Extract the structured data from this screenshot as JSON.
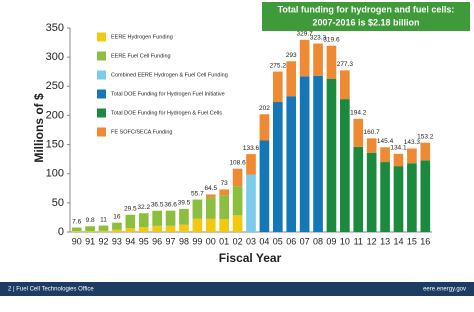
{
  "chart_data": {
    "type": "stacked-bar",
    "banner": [
      "Total funding for hydrogen and fuel cells:",
      "2007-2016 is $2.18 billion"
    ],
    "y_label": "Millions of $",
    "x_label": "Fiscal Year",
    "categories": [
      "90",
      "91",
      "92",
      "93",
      "94",
      "95",
      "96",
      "97",
      "98",
      "99",
      "00",
      "01",
      "02",
      "03",
      "04",
      "05",
      "06",
      "07",
      "08",
      "09",
      "10",
      "11",
      "12",
      "13",
      "14",
      "15",
      "16"
    ],
    "series": [
      {
        "name": "EERE Hydrogen Funding",
        "color": "#f2c811",
        "values": [
          1.5,
          1.5,
          2,
          4,
          6.5,
          8.2,
          10.5,
          10.6,
          12.5,
          22.7,
          22.5,
          22,
          28.6,
          null,
          null,
          null,
          null,
          null,
          null,
          null,
          null,
          null,
          null,
          null,
          null,
          null,
          null
        ]
      },
      {
        "name": "EERE Fuel Cell Funding",
        "color": "#8cbf3f",
        "values": [
          6.1,
          8.3,
          9,
          12,
          23,
          24,
          26,
          26,
          27,
          33,
          37,
          41,
          50,
          null,
          null,
          null,
          null,
          null,
          null,
          null,
          null,
          null,
          null,
          null,
          null,
          null,
          null
        ]
      },
      {
        "name": "Combined EERE Hydrogen & Fuel Cell Funding",
        "color": "#7ccbea",
        "values": [
          null,
          null,
          null,
          null,
          null,
          null,
          null,
          null,
          null,
          null,
          null,
          null,
          null,
          98.6,
          null,
          null,
          null,
          null,
          null,
          null,
          null,
          null,
          null,
          null,
          null,
          null,
          null
        ]
      },
      {
        "name": "Total DOE Funding for Hydrogen Fuel Initiative",
        "color": "#1577b8",
        "values": [
          null,
          null,
          null,
          null,
          null,
          null,
          null,
          null,
          null,
          null,
          null,
          null,
          null,
          null,
          157,
          223,
          233,
          267,
          268,
          null,
          null,
          null,
          null,
          null,
          null,
          null,
          null
        ]
      },
      {
        "name": "Total DOE Funding for Hydrogen & Fuel Cells",
        "color": "#1b8a3e",
        "values": [
          null,
          null,
          null,
          null,
          null,
          null,
          null,
          null,
          null,
          null,
          null,
          null,
          null,
          null,
          null,
          null,
          null,
          null,
          null,
          263,
          228,
          146,
          136,
          120,
          113,
          118,
          123
        ]
      },
      {
        "name": "FE SOFC/SECA Funding",
        "color": "#ee8a33",
        "values": [
          null,
          null,
          null,
          null,
          null,
          null,
          null,
          null,
          null,
          null,
          5,
          10,
          30,
          35,
          45,
          52.2,
          60,
          62.7,
          55.3,
          56.6,
          49.3,
          48.2,
          24.7,
          25.4,
          21.1,
          25.3,
          30.2
        ]
      }
    ],
    "totals": [
      7.6,
      9.8,
      11,
      16,
      29.5,
      32.2,
      36.5,
      36.6,
      39.5,
      55.7,
      64.5,
      73,
      108.6,
      133.6,
      202,
      275.2,
      293,
      329.7,
      323.3,
      319.6,
      277.3,
      194.2,
      160.7,
      145.4,
      134.1,
      143.3,
      153.2
    ],
    "ylim": [
      0,
      350
    ],
    "yticks": [
      0,
      50,
      100,
      150,
      200,
      250,
      300,
      350
    ],
    "footer_left": "2 | Fuel Cell Technologies Office",
    "footer_right": "eere.energy.gov"
  }
}
